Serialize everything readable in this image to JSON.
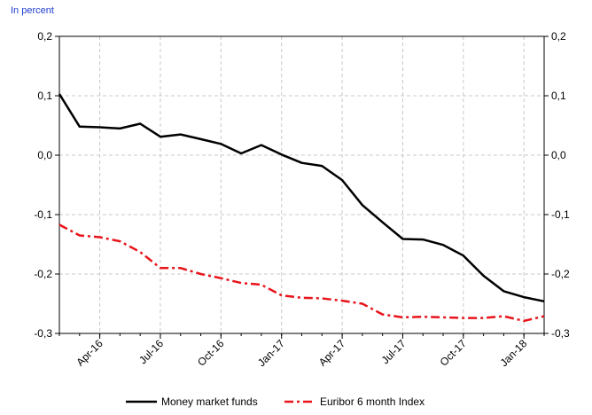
{
  "unit_label": "In percent",
  "chart_data": {
    "type": "line",
    "title": "",
    "xlabel": "",
    "ylabel": "In percent",
    "x": [
      "2016-02",
      "2016-03",
      "2016-04",
      "2016-05",
      "2016-06",
      "2016-07",
      "2016-08",
      "2016-09",
      "2016-10",
      "2016-11",
      "2016-12",
      "2017-01",
      "2017-02",
      "2017-03",
      "2017-04",
      "2017-05",
      "2017-06",
      "2017-07",
      "2017-08",
      "2017-09",
      "2017-10",
      "2017-11",
      "2017-12",
      "2018-01",
      "2018-02"
    ],
    "x_tick_labels": [
      "Apr-16",
      "Jul-16",
      "Oct-16",
      "Jan-17",
      "Apr-17",
      "Jul-17",
      "Oct-17",
      "Jan-18"
    ],
    "x_tick_dates": [
      "2016-04",
      "2016-07",
      "2016-10",
      "2017-01",
      "2017-04",
      "2017-07",
      "2017-10",
      "2018-01"
    ],
    "ylim": [
      -0.3,
      0.2
    ],
    "y_ticks": [
      "0,2",
      "0,1",
      "0,0",
      "-0,1",
      "-0,2",
      "-0,3"
    ],
    "y_tick_values": [
      0.2,
      0.1,
      0.0,
      -0.1,
      -0.2,
      -0.3
    ],
    "dual_y_axis_mirrored": true,
    "grid": true,
    "legend_position": "bottom-center",
    "series": [
      {
        "name": "Money market funds",
        "color": "#000000",
        "style": "solid",
        "values": [
          0.103,
          0.048,
          0.047,
          0.045,
          0.053,
          0.031,
          0.035,
          0.027,
          0.019,
          0.003,
          0.017,
          0.001,
          -0.013,
          -0.018,
          -0.042,
          -0.084,
          -0.113,
          -0.141,
          -0.142,
          -0.151,
          -0.169,
          -0.203,
          -0.229,
          -0.239,
          -0.246
        ]
      },
      {
        "name": "Euribor 6 month Index",
        "color": "#e8141b",
        "style": "dashed",
        "values": [
          -0.117,
          -0.135,
          -0.138,
          -0.145,
          -0.163,
          -0.19,
          -0.19,
          -0.2,
          -0.207,
          -0.215,
          -0.218,
          -0.236,
          -0.24,
          -0.241,
          -0.245,
          -0.25,
          -0.268,
          -0.273,
          -0.272,
          -0.273,
          -0.274,
          -0.274,
          -0.271,
          -0.279,
          -0.271
        ]
      }
    ]
  }
}
